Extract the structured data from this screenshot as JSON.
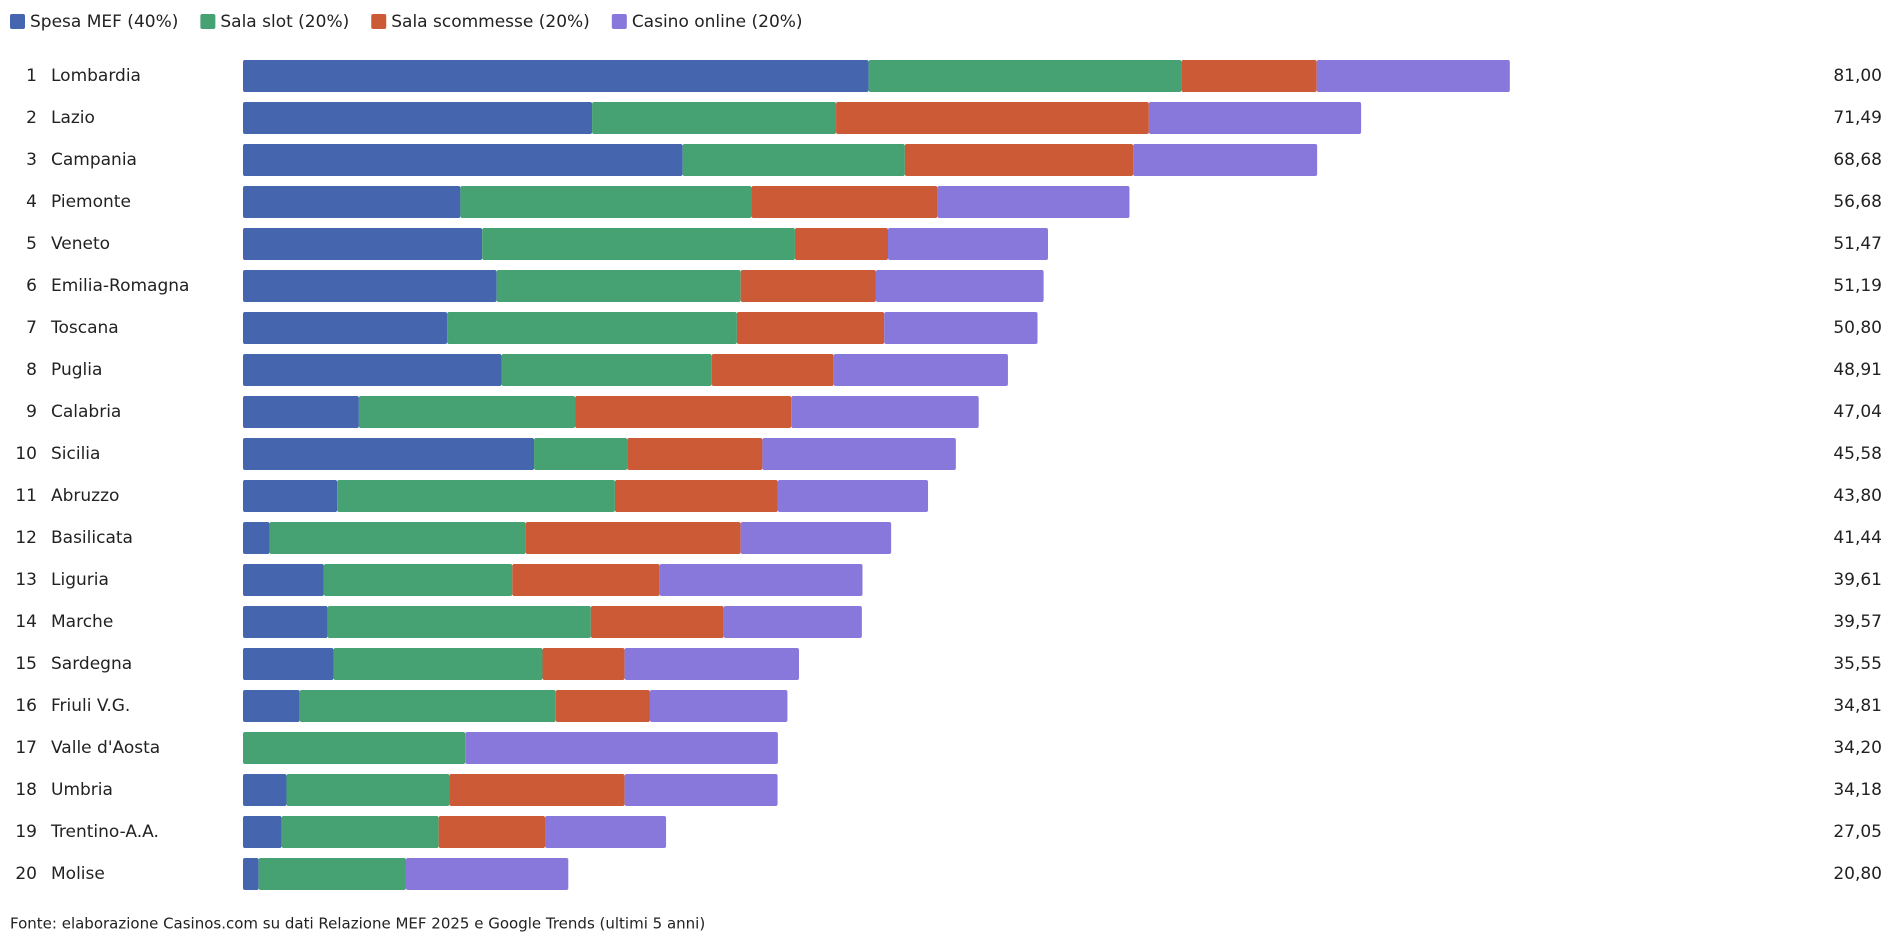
{
  "chart_data": {
    "type": "stacked-bar-horizontal",
    "ranks": [
      1,
      2,
      3,
      4,
      5,
      6,
      7,
      8,
      9,
      10,
      11,
      12,
      13,
      14,
      15,
      16,
      17,
      18,
      19,
      20
    ],
    "categories": [
      "Lombardia",
      "Lazio",
      "Campania",
      "Piemonte",
      "Veneto",
      "Emilia-Romagna",
      "Toscana",
      "Puglia",
      "Calabria",
      "Sicilia",
      "Abruzzo",
      "Basilicata",
      "Liguria",
      "Marche",
      "Sardegna",
      "Friuli V.G.",
      "Valle d'Aosta",
      "Umbria",
      "Trentino-A.A.",
      "Molise"
    ],
    "series": [
      {
        "name": "Spesa MEF (40%)",
        "color": "#4565ae",
        "values": [
          40.0,
          22.32,
          28.11,
          13.9,
          15.29,
          16.22,
          13.05,
          16.53,
          7.41,
          18.61,
          6.02,
          1.7,
          5.17,
          5.41,
          5.79,
          3.63,
          0,
          2.78,
          2.47,
          1.0
        ]
      },
      {
        "name": "Sala slot (20%)",
        "color": "#46a173",
        "values": [
          20.0,
          15.6,
          14.21,
          18.61,
          20.0,
          15.6,
          18.53,
          13.44,
          13.82,
          5.95,
          17.76,
          16.37,
          12.05,
          16.83,
          13.36,
          16.37,
          14.21,
          10.42,
          10.04,
          9.42
        ]
      },
      {
        "name": "Sala scommesse (20%)",
        "color": "#cc5a36",
        "values": [
          8.65,
          20.0,
          14.59,
          11.89,
          5.95,
          8.65,
          9.42,
          7.8,
          13.82,
          8.65,
          10.42,
          13.75,
          9.42,
          8.49,
          5.25,
          6.02,
          0,
          11.2,
          6.8,
          0
        ]
      },
      {
        "name": "Casino online (20%)",
        "color": "#8878dc",
        "values": [
          12.35,
          13.57,
          11.77,
          12.28,
          10.23,
          10.72,
          9.8,
          11.14,
          11.99,
          12.37,
          9.6,
          9.62,
          12.97,
          8.84,
          11.15,
          8.79,
          19.99,
          9.78,
          7.74,
          10.38
        ]
      }
    ],
    "totals": {
      "values": [
        81.0,
        71.49,
        68.68,
        56.68,
        51.47,
        51.19,
        50.8,
        48.91,
        47.04,
        45.58,
        43.8,
        41.44,
        39.61,
        39.57,
        35.55,
        34.81,
        34.2,
        34.18,
        27.05,
        20.8
      ],
      "value_labels": [
        "81,00",
        "71,49",
        "68,68",
        "56,68",
        "51,47",
        "51,19",
        "50,80",
        "48,91",
        "47,04",
        "45,58",
        "43,80",
        "41,44",
        "39,61",
        "39,57",
        "35,55",
        "34,81",
        "34,20",
        "34,18",
        "27,05",
        "20,80"
      ]
    },
    "source": "Fonte: elaborazione Casinos.com su dati Relazione MEF 2025 e Google Trends (ultimi 5 anni)"
  }
}
